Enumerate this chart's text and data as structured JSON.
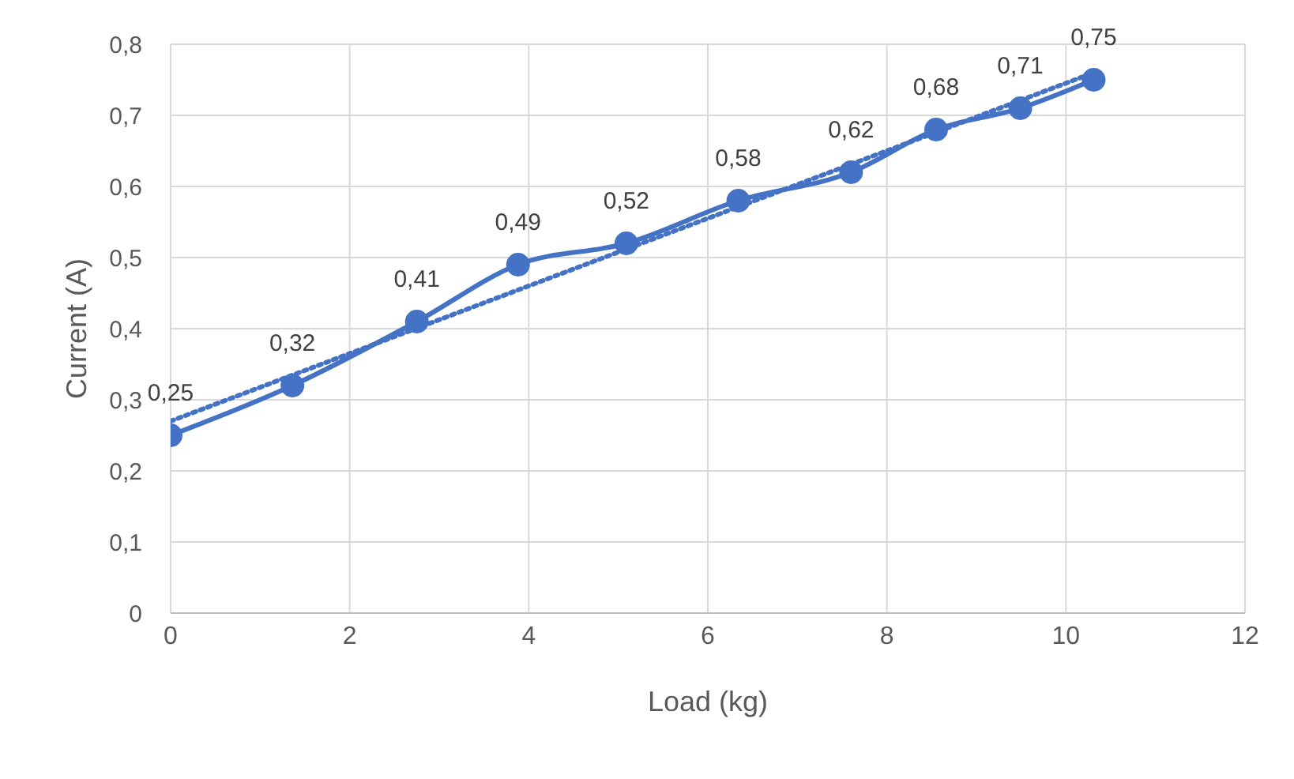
{
  "chart_data": {
    "type": "line",
    "xlabel": "Load (kg)",
    "ylabel": "Current (A)",
    "xlim": [
      0,
      12
    ],
    "xticks": [
      0,
      2,
      4,
      6,
      8,
      10,
      12
    ],
    "ylim": [
      0,
      0.8
    ],
    "yticks": [
      {
        "value": 0,
        "label": "0"
      },
      {
        "value": 0.1,
        "label": "0,1"
      },
      {
        "value": 0.2,
        "label": "0,2"
      },
      {
        "value": 0.3,
        "label": "0,3"
      },
      {
        "value": 0.4,
        "label": "0,4"
      },
      {
        "value": 0.5,
        "label": "0,5"
      },
      {
        "value": 0.6,
        "label": "0,6"
      },
      {
        "value": 0.7,
        "label": "0,7"
      },
      {
        "value": 0.8,
        "label": "0,8"
      }
    ],
    "grid": true,
    "legend": false,
    "series": [
      {
        "color": "#4472c4",
        "marker": "circle",
        "line_style": "solid",
        "x": [
          0,
          1.36,
          2.75,
          3.88,
          5.09,
          6.34,
          7.6,
          8.55,
          9.49,
          10.31
        ],
        "values": [
          0.25,
          0.32,
          0.41,
          0.49,
          0.52,
          0.58,
          0.62,
          0.68,
          0.71,
          0.75
        ],
        "value_labels": [
          "0,25",
          "0,32",
          "0,41",
          "0,49",
          "0,52",
          "0,58",
          "0,62",
          "0,68",
          "0,71",
          "0,75"
        ]
      },
      {
        "color": "#4472c4",
        "marker": "none",
        "line_style": "dotted",
        "x": [
          0,
          10.31
        ],
        "values": [
          0.27,
          0.76
        ]
      }
    ]
  }
}
